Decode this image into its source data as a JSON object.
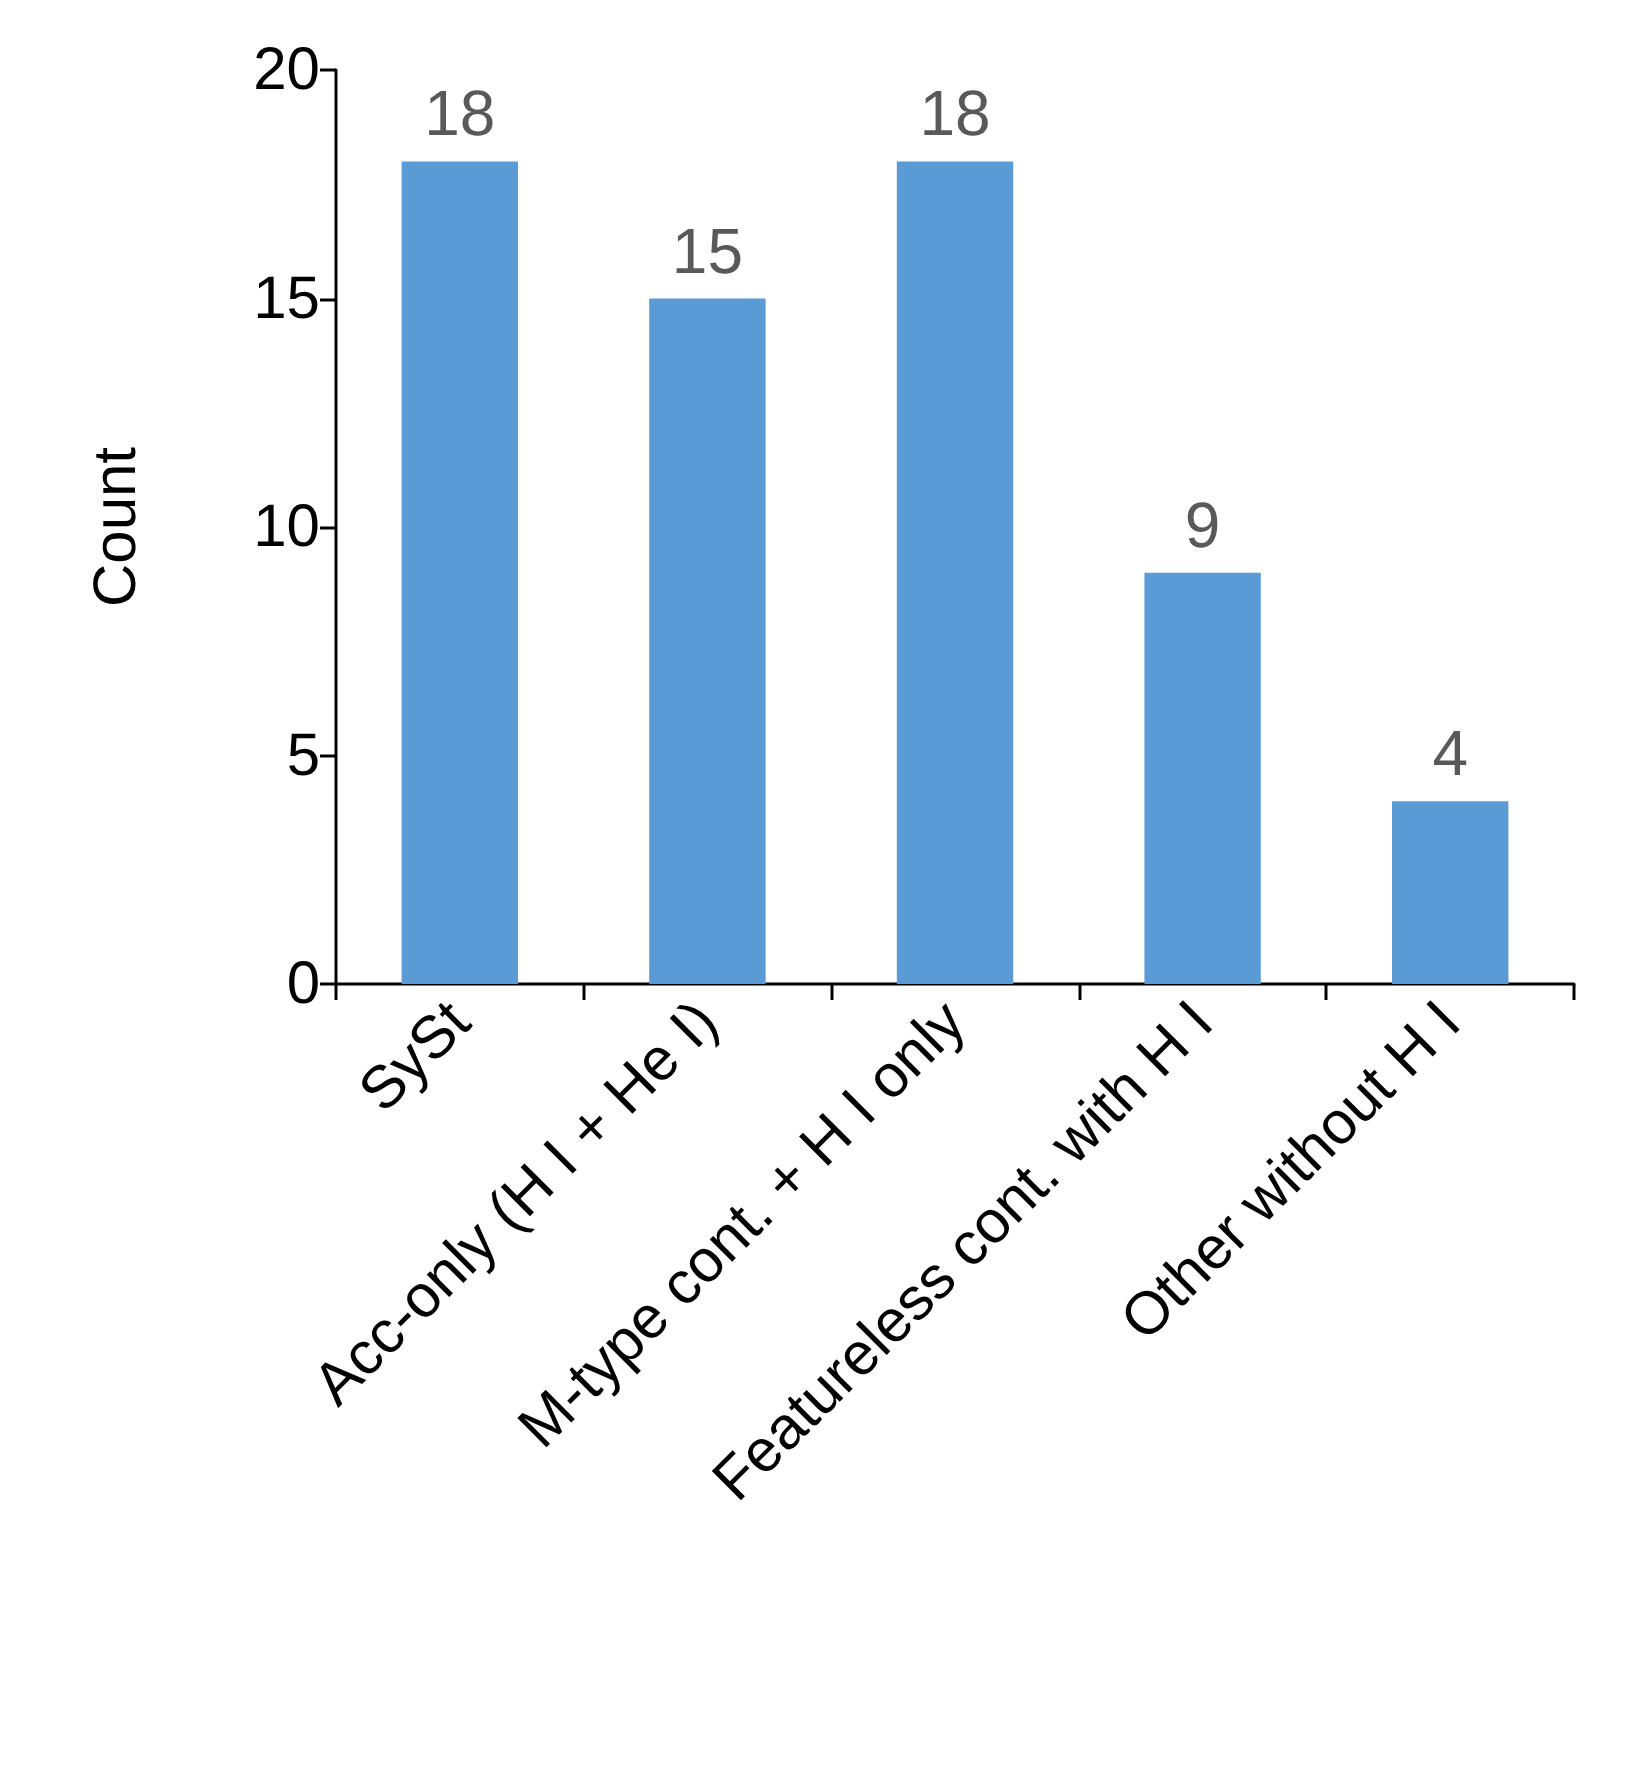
{
  "chart_data": {
    "type": "bar",
    "ylabel": "Count",
    "categories": [
      "SySt",
      "Acc-only (H I + He I)",
      "M-type cont. + H I only",
      "Featureless cont. with H I",
      "Other without H I"
    ],
    "values": [
      18,
      15,
      18,
      9,
      4
    ],
    "color": "#5b9bd5",
    "ylim": [
      0,
      20
    ],
    "yticks": [
      0,
      5,
      10,
      15,
      20
    ],
    "data_labels": true,
    "grid": false
  }
}
